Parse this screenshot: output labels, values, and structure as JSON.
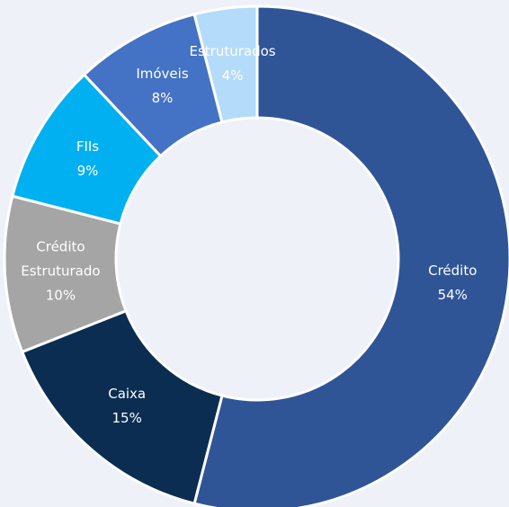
{
  "chart_data": {
    "type": "donut",
    "categories": [
      "Crédito",
      "Caixa",
      "Crédito Estruturado",
      "FIIs",
      "Imóveis",
      "Estruturados"
    ],
    "values": [
      54,
      15,
      10,
      9,
      8,
      4
    ],
    "value_labels": [
      "54%",
      "15%",
      "10%",
      "9%",
      "8%",
      "4%"
    ],
    "colors": [
      "#2f5597",
      "#0b2d52",
      "#a5a5a5",
      "#00b0f0",
      "#4472c4",
      "#b4dbfa"
    ]
  }
}
